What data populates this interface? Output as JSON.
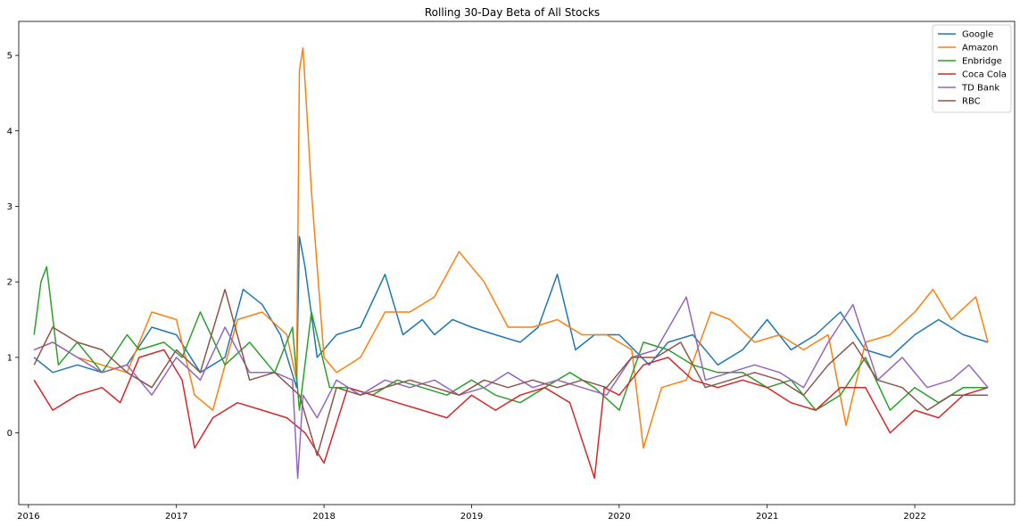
{
  "chart_data": {
    "type": "line",
    "title": "Rolling 30-Day Beta of All Stocks",
    "xlabel": "",
    "ylabel": "",
    "xlim": [
      "2015-12-08",
      "2022-09-05"
    ],
    "ylim": [
      -0.95,
      5.45
    ],
    "x_ticks": [
      "2016-01-01",
      "2017-01-01",
      "2018-01-01",
      "2019-01-01",
      "2020-01-01",
      "2021-01-01",
      "2022-01-01"
    ],
    "x_tick_labels": [
      "2016",
      "2017",
      "2018",
      "2019",
      "2020",
      "2021",
      "2022"
    ],
    "y_ticks": [
      0,
      1,
      2,
      3,
      4,
      5
    ],
    "y_tick_labels": [
      "0",
      "1",
      "2",
      "3",
      "4",
      "5"
    ],
    "grid": false,
    "legend_position": "top-right",
    "series": [
      {
        "name": "Google",
        "color": "#1f77b4",
        "x": [
          "2016-01-15",
          "2016-03-01",
          "2016-05-01",
          "2016-07-01",
          "2016-09-01",
          "2016-11-01",
          "2017-01-01",
          "2017-03-01",
          "2017-05-01",
          "2017-06-15",
          "2017-08-01",
          "2017-09-15",
          "2017-10-25",
          "2017-11-01",
          "2017-11-15",
          "2017-12-15",
          "2018-02-01",
          "2018-04-01",
          "2018-06-01",
          "2018-07-15",
          "2018-09-01",
          "2018-10-01",
          "2018-11-15",
          "2019-01-01",
          "2019-03-01",
          "2019-05-01",
          "2019-06-15",
          "2019-08-01",
          "2019-09-15",
          "2019-11-01",
          "2020-01-01",
          "2020-03-15",
          "2020-05-01",
          "2020-07-01",
          "2020-09-01",
          "2020-11-01",
          "2021-01-01",
          "2021-03-01",
          "2021-05-01",
          "2021-07-01",
          "2021-09-01",
          "2021-11-01",
          "2022-01-01",
          "2022-03-01",
          "2022-05-01",
          "2022-07-01"
        ],
        "values": [
          1.0,
          0.8,
          0.9,
          0.8,
          0.9,
          1.4,
          1.3,
          0.8,
          1.0,
          1.9,
          1.7,
          1.3,
          0.6,
          2.6,
          2.2,
          1.0,
          1.3,
          1.4,
          2.1,
          1.3,
          1.5,
          1.3,
          1.5,
          1.4,
          1.3,
          1.2,
          1.4,
          2.1,
          1.1,
          1.3,
          1.3,
          0.9,
          1.2,
          1.3,
          0.9,
          1.1,
          1.5,
          1.1,
          1.3,
          1.6,
          1.1,
          1.0,
          1.3,
          1.5,
          1.3,
          1.2
        ]
      },
      {
        "name": "Amazon",
        "color": "#ff7f0e",
        "x": [
          "2016-01-15",
          "2016-03-01",
          "2016-05-01",
          "2016-07-01",
          "2016-09-01",
          "2016-11-01",
          "2017-01-01",
          "2017-02-15",
          "2017-04-01",
          "2017-06-01",
          "2017-08-01",
          "2017-10-01",
          "2017-10-25",
          "2017-11-01",
          "2017-11-10",
          "2017-11-20",
          "2017-12-01",
          "2017-12-15",
          "2018-01-01",
          "2018-02-01",
          "2018-04-01",
          "2018-06-01",
          "2018-08-01",
          "2018-10-01",
          "2018-12-01",
          "2019-02-01",
          "2019-04-01",
          "2019-06-01",
          "2019-08-01",
          "2019-10-01",
          "2019-12-01",
          "2020-02-01",
          "2020-03-01",
          "2020-04-15",
          "2020-06-15",
          "2020-08-15",
          "2020-10-01",
          "2020-12-01",
          "2021-02-01",
          "2021-04-01",
          "2021-06-01",
          "2021-07-15",
          "2021-09-01",
          "2021-11-01",
          "2022-01-01",
          "2022-02-15",
          "2022-04-01",
          "2022-06-01",
          "2022-07-01"
        ],
        "values": [
          1.1,
          1.2,
          1.0,
          0.9,
          0.8,
          1.6,
          1.5,
          0.5,
          0.3,
          1.5,
          1.6,
          1.3,
          0.7,
          4.8,
          5.1,
          4.2,
          3.2,
          2.2,
          1.0,
          0.8,
          1.0,
          1.6,
          1.6,
          1.8,
          2.4,
          2.0,
          1.4,
          1.4,
          1.5,
          1.3,
          1.3,
          1.1,
          -0.2,
          0.6,
          0.7,
          1.6,
          1.5,
          1.2,
          1.3,
          1.1,
          1.3,
          0.1,
          1.2,
          1.3,
          1.6,
          1.9,
          1.5,
          1.8,
          1.2
        ]
      },
      {
        "name": "Enbridge",
        "color": "#2ca02c",
        "x": [
          "2016-01-15",
          "2016-02-01",
          "2016-02-15",
          "2016-03-15",
          "2016-05-01",
          "2016-07-01",
          "2016-09-01",
          "2016-10-01",
          "2016-12-01",
          "2017-01-15",
          "2017-03-01",
          "2017-05-01",
          "2017-07-01",
          "2017-09-01",
          "2017-10-15",
          "2017-11-01",
          "2017-12-01",
          "2018-01-15",
          "2018-03-01",
          "2018-05-01",
          "2018-07-01",
          "2018-09-01",
          "2018-11-01",
          "2019-01-01",
          "2019-03-01",
          "2019-05-01",
          "2019-07-01",
          "2019-09-01",
          "2019-11-01",
          "2020-01-01",
          "2020-03-01",
          "2020-05-01",
          "2020-07-01",
          "2020-09-01",
          "2020-11-01",
          "2021-01-01",
          "2021-03-01",
          "2021-05-01",
          "2021-07-01",
          "2021-09-01",
          "2021-11-01",
          "2022-01-01",
          "2022-03-01",
          "2022-05-01",
          "2022-07-01"
        ],
        "values": [
          1.3,
          2.0,
          2.2,
          0.9,
          1.2,
          0.8,
          1.3,
          1.1,
          1.2,
          1.0,
          1.6,
          0.9,
          1.2,
          0.8,
          1.4,
          0.3,
          1.6,
          0.6,
          0.6,
          0.5,
          0.7,
          0.6,
          0.5,
          0.7,
          0.5,
          0.4,
          0.6,
          0.8,
          0.6,
          0.3,
          1.2,
          1.1,
          0.9,
          0.8,
          0.8,
          0.6,
          0.7,
          0.3,
          0.5,
          1.0,
          0.3,
          0.6,
          0.4,
          0.6,
          0.6
        ]
      },
      {
        "name": "Coca Cola",
        "color": "#d62728",
        "x": [
          "2016-01-15",
          "2016-03-01",
          "2016-05-01",
          "2016-07-01",
          "2016-08-15",
          "2016-10-01",
          "2016-12-01",
          "2017-01-15",
          "2017-02-15",
          "2017-04-01",
          "2017-06-01",
          "2017-08-01",
          "2017-10-01",
          "2017-11-15",
          "2018-01-01",
          "2018-03-01",
          "2018-05-01",
          "2018-07-01",
          "2018-09-01",
          "2018-11-01",
          "2019-01-01",
          "2019-03-01",
          "2019-05-01",
          "2019-07-01",
          "2019-09-01",
          "2019-11-01",
          "2019-11-25",
          "2020-01-01",
          "2020-03-01",
          "2020-05-01",
          "2020-07-01",
          "2020-09-01",
          "2020-11-01",
          "2021-01-01",
          "2021-03-01",
          "2021-05-01",
          "2021-07-01",
          "2021-09-01",
          "2021-11-01",
          "2022-01-01",
          "2022-03-01",
          "2022-05-01",
          "2022-07-01"
        ],
        "values": [
          0.7,
          0.3,
          0.5,
          0.6,
          0.4,
          1.0,
          1.1,
          0.7,
          -0.2,
          0.2,
          0.4,
          0.3,
          0.2,
          0.0,
          -0.4,
          0.6,
          0.5,
          0.4,
          0.3,
          0.2,
          0.5,
          0.3,
          0.5,
          0.6,
          0.4,
          -0.6,
          0.6,
          0.5,
          0.9,
          1.0,
          0.7,
          0.6,
          0.7,
          0.6,
          0.4,
          0.3,
          0.6,
          0.6,
          0.0,
          0.3,
          0.2,
          0.5,
          0.6
        ]
      },
      {
        "name": "TD Bank",
        "color": "#9467bd",
        "x": [
          "2016-01-15",
          "2016-03-01",
          "2016-05-01",
          "2016-07-01",
          "2016-09-01",
          "2016-11-01",
          "2017-01-01",
          "2017-03-01",
          "2017-05-01",
          "2017-07-01",
          "2017-09-01",
          "2017-10-15",
          "2017-10-28",
          "2017-11-10",
          "2017-12-15",
          "2018-02-01",
          "2018-04-01",
          "2018-06-01",
          "2018-08-01",
          "2018-10-01",
          "2018-12-01",
          "2019-02-01",
          "2019-04-01",
          "2019-06-01",
          "2019-08-01",
          "2019-10-01",
          "2019-12-01",
          "2020-02-01",
          "2020-04-01",
          "2020-06-15",
          "2020-08-01",
          "2020-10-01",
          "2020-12-01",
          "2021-02-01",
          "2021-04-01",
          "2021-06-01",
          "2021-08-01",
          "2021-10-01",
          "2021-12-01",
          "2022-02-01",
          "2022-04-01",
          "2022-05-15",
          "2022-07-01"
        ],
        "values": [
          1.1,
          1.2,
          1.0,
          0.8,
          0.9,
          0.5,
          1.0,
          0.7,
          1.4,
          0.8,
          0.8,
          0.7,
          -0.6,
          0.5,
          0.2,
          0.7,
          0.5,
          0.7,
          0.6,
          0.7,
          0.5,
          0.6,
          0.8,
          0.6,
          0.7,
          0.6,
          0.5,
          1.0,
          1.1,
          1.8,
          0.7,
          0.8,
          0.9,
          0.8,
          0.6,
          1.2,
          1.7,
          0.7,
          1.0,
          0.6,
          0.7,
          0.9,
          0.6
        ]
      },
      {
        "name": "RBC",
        "color": "#8c564b",
        "x": [
          "2016-01-15",
          "2016-03-01",
          "2016-05-01",
          "2016-07-01",
          "2016-09-01",
          "2016-11-01",
          "2017-01-01",
          "2017-03-01",
          "2017-05-01",
          "2017-07-01",
          "2017-09-01",
          "2017-11-01",
          "2017-12-15",
          "2018-02-01",
          "2018-04-01",
          "2018-06-01",
          "2018-08-01",
          "2018-10-01",
          "2018-12-01",
          "2019-02-01",
          "2019-04-01",
          "2019-06-01",
          "2019-08-01",
          "2019-10-01",
          "2019-12-01",
          "2020-02-01",
          "2020-04-01",
          "2020-06-01",
          "2020-08-01",
          "2020-10-01",
          "2020-12-01",
          "2021-02-01",
          "2021-04-01",
          "2021-06-01",
          "2021-08-01",
          "2021-10-01",
          "2021-12-01",
          "2022-02-01",
          "2022-04-01",
          "2022-07-01"
        ],
        "values": [
          0.9,
          1.4,
          1.2,
          1.1,
          0.8,
          0.6,
          1.1,
          0.8,
          1.9,
          0.7,
          0.8,
          0.5,
          -0.3,
          0.6,
          0.5,
          0.6,
          0.7,
          0.6,
          0.5,
          0.7,
          0.6,
          0.7,
          0.6,
          0.7,
          0.6,
          1.0,
          1.0,
          1.2,
          0.6,
          0.7,
          0.8,
          0.7,
          0.5,
          0.9,
          1.2,
          0.7,
          0.6,
          0.3,
          0.5,
          0.5
        ]
      }
    ]
  }
}
